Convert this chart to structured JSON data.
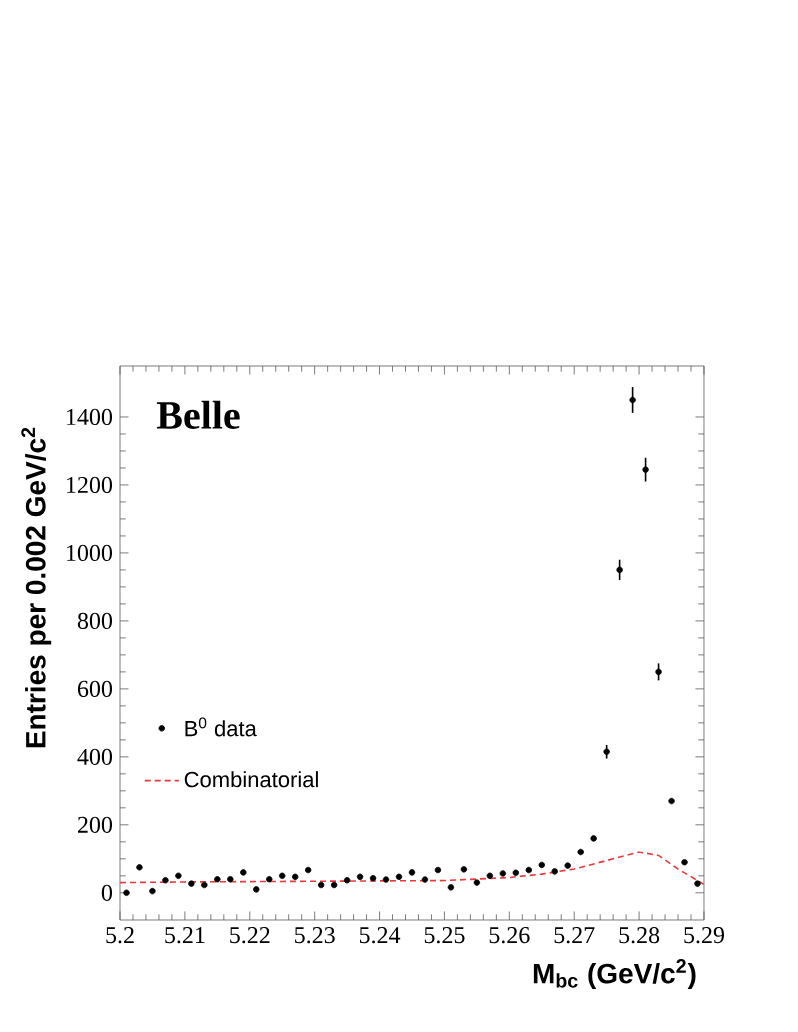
{
  "chart_data": {
    "type": "scatter",
    "xlabel": "M$_{bc}$ (GeV/c$^{2}$)",
    "ylabel": "Entries per 0.002 GeV/c$^{2}$",
    "annotations": [
      "Belle"
    ],
    "xlim": [
      5.2,
      5.29
    ],
    "ylim": [
      -80,
      1550
    ],
    "xticks": [
      5.2,
      5.21,
      5.22,
      5.23,
      5.24,
      5.25,
      5.26,
      5.27,
      5.28,
      5.29
    ],
    "yticks": [
      0,
      200,
      400,
      600,
      800,
      1000,
      1200,
      1400
    ],
    "legend": "center left",
    "grid": false,
    "series": [
      {
        "name": "B$^{0}$ data",
        "color": "#000000",
        "marker": "circle",
        "x": [
          5.201,
          5.203,
          5.205,
          5.207,
          5.209,
          5.211,
          5.213,
          5.215,
          5.217,
          5.219,
          5.221,
          5.223,
          5.225,
          5.227,
          5.229,
          5.231,
          5.233,
          5.235,
          5.237,
          5.239,
          5.241,
          5.243,
          5.245,
          5.247,
          5.249,
          5.251,
          5.253,
          5.255,
          5.257,
          5.259,
          5.261,
          5.263,
          5.265,
          5.267,
          5.269,
          5.271,
          5.273,
          5.275,
          5.277,
          5.279,
          5.281,
          5.283,
          5.285,
          5.287,
          5.289
        ],
        "values": [
          0,
          75,
          5,
          37,
          50,
          27,
          23,
          40,
          40,
          60,
          10,
          40,
          50,
          47,
          67,
          23,
          23,
          37,
          47,
          43,
          39,
          47,
          60,
          39,
          67,
          16,
          69,
          30,
          50,
          57,
          59,
          67,
          82,
          63,
          80,
          120,
          160,
          415,
          950,
          1450,
          1245,
          650,
          270,
          90,
          27
        ],
        "errors": [
          null,
          null,
          null,
          null,
          null,
          null,
          null,
          null,
          null,
          null,
          null,
          null,
          null,
          null,
          null,
          null,
          null,
          null,
          null,
          null,
          null,
          null,
          null,
          null,
          null,
          null,
          null,
          null,
          null,
          null,
          null,
          null,
          null,
          null,
          null,
          null,
          null,
          20,
          30,
          38,
          35,
          25,
          null,
          null,
          null
        ]
      },
      {
        "name": "Combinatorial",
        "type": "line",
        "color": "#e8393a",
        "marker": "none",
        "line_style": "dashed",
        "x": [
          5.2,
          5.21,
          5.22,
          5.23,
          5.24,
          5.25,
          5.26,
          5.265,
          5.27,
          5.275,
          5.28,
          5.283,
          5.286,
          5.29
        ],
        "values": [
          30,
          32,
          33,
          34,
          35,
          36,
          45,
          55,
          70,
          95,
          120,
          110,
          70,
          25
        ]
      }
    ]
  }
}
